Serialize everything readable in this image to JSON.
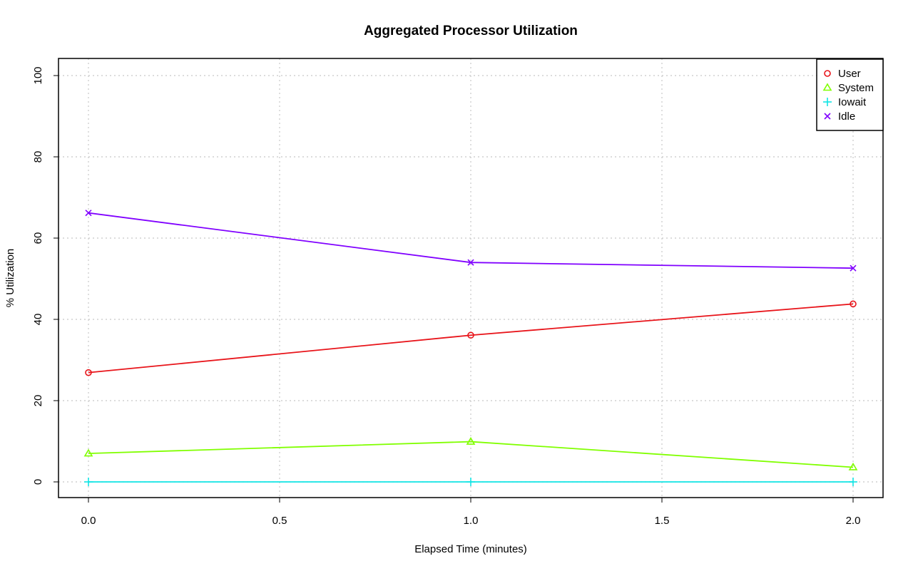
{
  "chart_data": {
    "type": "line",
    "title": "Aggregated Processor Utilization",
    "xlabel": "Elapsed Time (minutes)",
    "ylabel": "% Utilization",
    "xlim": [
      0,
      2
    ],
    "ylim": [
      0,
      100
    ],
    "x_ticks": [
      "0.0",
      "0.5",
      "1.0",
      "1.5",
      "2.0"
    ],
    "y_ticks": [
      "0",
      "20",
      "40",
      "60",
      "80",
      "100"
    ],
    "grid": true,
    "legend_position": "top-right",
    "x": [
      0,
      1,
      2
    ],
    "series": [
      {
        "name": "User",
        "values": [
          26.9,
          36.1,
          43.8
        ],
        "color": "#e8141a",
        "marker": "circle"
      },
      {
        "name": "System",
        "values": [
          7.0,
          9.9,
          3.6
        ],
        "color": "#80ff00",
        "marker": "triangle"
      },
      {
        "name": "Iowait",
        "values": [
          0.0,
          0.0,
          0.0
        ],
        "color": "#10e4e4",
        "marker": "plus"
      },
      {
        "name": "Idle",
        "values": [
          66.2,
          54.0,
          52.6
        ],
        "color": "#8000ff",
        "marker": "cross"
      }
    ]
  }
}
